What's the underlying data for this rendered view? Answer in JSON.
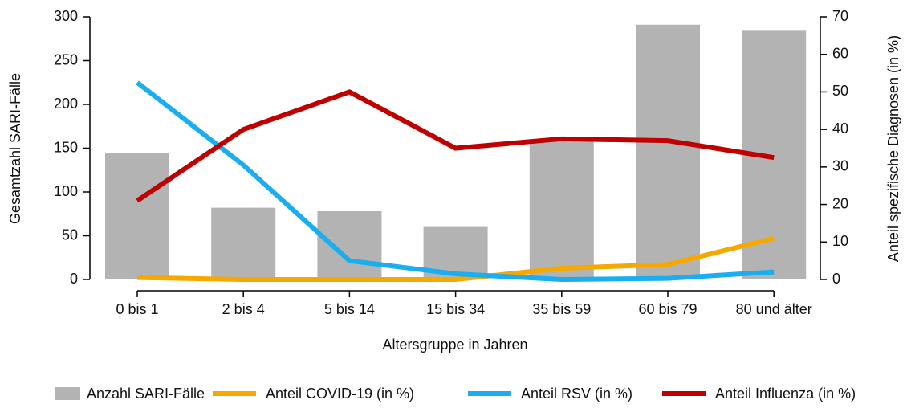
{
  "chart_data": {
    "type": "bar-line",
    "categories": [
      "0 bis 1",
      "2 bis 4",
      "5 bis 14",
      "15 bis 34",
      "35 bis 59",
      "60 bis 79",
      "80 und älter"
    ],
    "x_label": "Altersgruppe in Jahren",
    "y_label": "Gesamtzahl SARI-Fälle",
    "y2_label": "Anteil spezifische Diagnosen (in %)",
    "ylim": [
      0,
      300
    ],
    "yticks": [
      0,
      50,
      100,
      150,
      200,
      250,
      300
    ],
    "y2lim": [
      0,
      70
    ],
    "y2ticks": [
      0,
      10,
      20,
      30,
      40,
      50,
      60,
      70
    ],
    "series": [
      {
        "name": "Anzahl SARI-Fälle",
        "type": "bar",
        "color": "#b3b3b3",
        "values": [
          144,
          82,
          78,
          60,
          160,
          291,
          285
        ]
      },
      {
        "name": "Anteil COVID-19 (in %)",
        "type": "line",
        "axis": "y2",
        "color": "#f5a800",
        "values": [
          0.5,
          0,
          0,
          0,
          3,
          4,
          11
        ]
      },
      {
        "name": "Anteil RSV (in %)",
        "type": "line",
        "axis": "y2",
        "color": "#1aaef0",
        "values": [
          52.5,
          30.5,
          5,
          1.5,
          0,
          0.3,
          2
        ]
      },
      {
        "name": "Anteil Influenza (in %)",
        "type": "line",
        "axis": "y2",
        "color": "#c00000",
        "values": [
          21,
          40,
          50,
          35,
          37.5,
          37,
          32.5
        ]
      }
    ]
  }
}
